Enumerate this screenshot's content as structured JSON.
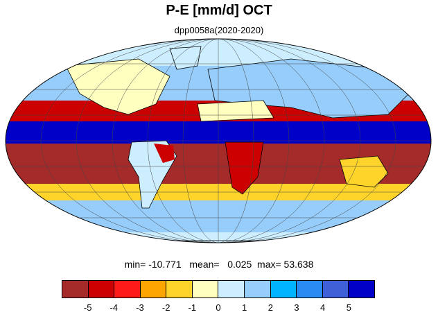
{
  "title": "P-E [mm/d] OCT",
  "subtitle": "dpp0058a(2020-2020)",
  "stats": {
    "text": "min= -10.771   mean=   0.025  max= 53.638",
    "min": -10.771,
    "mean": 0.025,
    "max": 53.638
  },
  "map": {
    "projection": "Mollweide",
    "variable": "P-E",
    "units": "mm/d",
    "month": "OCT"
  },
  "colorbar": {
    "colors": [
      "#a52a2a",
      "#cc0000",
      "#ff1a1a",
      "#ffa500",
      "#ffd42a",
      "#ffffc0",
      "#cdeefe",
      "#96cdfb",
      "#00b4ff",
      "#288cf0",
      "#4060d8",
      "#0000c8"
    ],
    "labels": [
      "-5",
      "-4",
      "-3",
      "-2",
      "-1",
      "0",
      "1",
      "2",
      "3",
      "4",
      "5"
    ]
  }
}
